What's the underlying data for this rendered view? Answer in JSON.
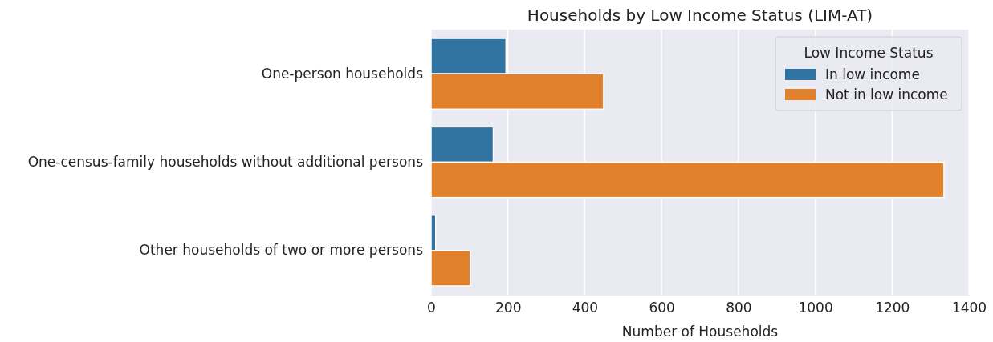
{
  "chart_data": {
    "type": "bar",
    "orientation": "horizontal",
    "title": "Households by Low Income Status (LIM-AT)",
    "xlabel": "Number of Households",
    "legend_title": "Low Income Status",
    "categories": [
      "One-person households",
      "One-census-family households without additional persons",
      "Other households of two or more persons"
    ],
    "series": [
      {
        "name": "In low income",
        "color": "#3274a1",
        "values": [
          195,
          162,
          12
        ]
      },
      {
        "name": "Not in low income",
        "color": "#e1812c",
        "values": [
          449,
          1335,
          102
        ]
      }
    ],
    "xlim": [
      0,
      1400
    ],
    "xticks": [
      0,
      200,
      400,
      600,
      800,
      1000,
      1200,
      1400
    ],
    "grid": "x",
    "legend": "top right"
  }
}
